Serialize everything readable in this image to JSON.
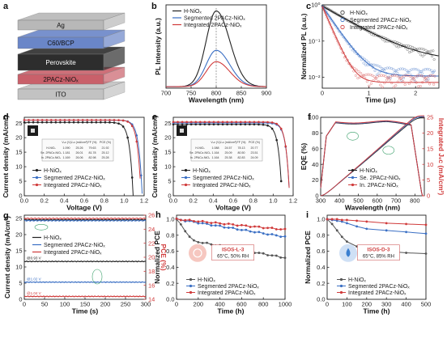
{
  "chart_data": [
    {
      "panel": "a",
      "type": "diagram",
      "layers": [
        {
          "name": "Ag",
          "color": "#b8b8b8"
        },
        {
          "name": "C60/BCP",
          "color": "#6a86c8"
        },
        {
          "name": "Perovskite",
          "color": "#2d2d2d"
        },
        {
          "name": "2PACz-NiOx",
          "color": "#c9606a"
        },
        {
          "name": "ITO",
          "color": "#c2c2c2"
        }
      ]
    },
    {
      "panel": "b",
      "type": "line",
      "xlabel": "Wavelength (nm)",
      "ylabel": "PL Intensity (a.u.)",
      "xlim": [
        700,
        900
      ],
      "xticks": [
        700,
        750,
        800,
        850,
        900
      ],
      "peak": 800,
      "series": [
        {
          "name": "H-NiOx",
          "color": "#222222",
          "amplitude": 1.0
        },
        {
          "name": "Segmented 2PACz-NiOx",
          "color": "#3a6fc4",
          "amplitude": 0.48
        },
        {
          "name": "Integrated 2PACz-NiOx",
          "color": "#d03a3a",
          "amplitude": 0.33
        }
      ]
    },
    {
      "panel": "c",
      "type": "scatter",
      "xlabel": "Time (μs)",
      "ylabel": "Normalized PL (a.u.)",
      "xlim": [
        0,
        2.5
      ],
      "ylog": true,
      "ylim": [
        0.005,
        1
      ],
      "xticks": [
        0,
        1,
        2
      ],
      "yticks": [
        "10^0",
        "10^-1",
        "10^-2"
      ],
      "series": [
        {
          "name": "H-NiOx",
          "color": "#333333",
          "tau": 0.55,
          "floor": 0.03
        },
        {
          "name": "Segmented 2PACz-NiOx",
          "color": "#3a6fc4",
          "tau": 0.22,
          "floor": 0.012
        },
        {
          "name": "Integrated 2PACz-NiOx",
          "color": "#d03a3a",
          "tau": 0.14,
          "floor": 0.008
        }
      ]
    },
    {
      "panel": "d",
      "type": "line",
      "xlabel": "Voltage (V)",
      "ylabel": "Current density (mA/cm²)",
      "xlim": [
        0,
        1.2
      ],
      "ylim": [
        0,
        27
      ],
      "xticks": [
        0,
        0.2,
        0.4,
        0.6,
        0.8,
        1.0,
        1.2
      ],
      "yticks": [
        0,
        5,
        10,
        15,
        20,
        25
      ],
      "series": [
        {
          "name": "H-NiOx",
          "color": "#222222",
          "voc": 1.09,
          "jsc": 25.26
        },
        {
          "name": "Segmented 2PACz-NiOx",
          "color": "#3a6fc4",
          "voc": 1.181,
          "jsc": 26.01
        },
        {
          "name": "Integrated 2PACz-NiOx",
          "color": "#d03a3a",
          "voc": 1.169,
          "jsc": 26.06
        }
      ],
      "table": {
        "headers": [
          "",
          "V_oc (V)",
          "J_sc (mA/cm²)",
          "FF (%)",
          "PCE (%)"
        ],
        "rows": [
          [
            "H-NiOx",
            "1.090",
            "25.26",
            "79.63",
            "21.92"
          ],
          [
            "Se. 2PACz-NiOx",
            "1.181",
            "26.01",
            "81.78",
            "25.12"
          ],
          [
            "In. 2PACz-NiOx",
            "1.169",
            "26.06",
            "82.98",
            "25.28"
          ]
        ]
      }
    },
    {
      "panel": "e",
      "type": "line",
      "xlabel": "Voltage (V)",
      "ylabel": "Current density (mA/cm²)",
      "xlim": [
        0,
        1.2
      ],
      "ylim": [
        0,
        27
      ],
      "xticks": [
        0,
        0.2,
        0.4,
        0.6,
        0.8,
        1.0,
        1.2
      ],
      "yticks": [
        0,
        5,
        10,
        15,
        20,
        25
      ],
      "series": [
        {
          "name": "H-NiOx",
          "color": "#222222",
          "voc": 1.088,
          "jsc": 24.57
        },
        {
          "name": "Segmented 2PACz-NiOx",
          "color": "#3a6fc4",
          "voc": 1.164,
          "jsc": 25.09
        },
        {
          "name": "Integrated 2PACz-NiOx",
          "color": "#d03a3a",
          "voc": 1.164,
          "jsc": 25.38
        }
      ],
      "table": {
        "headers": [
          "",
          "V_oc (V)",
          "J_sc (mA/cm²)",
          "FF (%)",
          "PCE (%)"
        ],
        "rows": [
          [
            "H-NiOx",
            "1.088",
            "24.57",
            "78.13",
            "20.77"
          ],
          [
            "Se. 2PACz-NiOx",
            "1.164",
            "25.09",
            "80.50",
            "23.51"
          ],
          [
            "In. 2PACz-NiOx",
            "1.164",
            "25.38",
            "82.83",
            "24.09"
          ]
        ]
      }
    },
    {
      "panel": "f",
      "type": "line",
      "xlabel": "Wavelength (nm)",
      "ylabel": "EQE (%)",
      "y2label": "Integrated J_sc (mA/cm²)",
      "xlim": [
        300,
        850
      ],
      "ylim": [
        0,
        100
      ],
      "y2lim": [
        0,
        25
      ],
      "xticks": [
        300,
        400,
        500,
        600,
        700,
        800
      ],
      "yticks": [
        0,
        20,
        40,
        60,
        80,
        100
      ],
      "y2ticks": [
        0,
        5,
        10,
        15,
        20,
        25
      ],
      "series": [
        {
          "name": "H-NiOx",
          "color": "#222222"
        },
        {
          "name": "Se. 2PACz-NiOx",
          "color": "#3a6fc4"
        },
        {
          "name": "In. 2PACz-NiOx",
          "color": "#d03a3a"
        }
      ]
    },
    {
      "panel": "g",
      "type": "line",
      "xlabel": "Time (s)",
      "ylabel": "Current density (mA/cm²)",
      "y2label": "PCE (%)",
      "xlim": [
        0,
        300
      ],
      "ylim": [
        0,
        26
      ],
      "xticks": [
        0,
        50,
        100,
        150,
        200,
        250,
        300
      ],
      "yticks": [
        0,
        5,
        10,
        15,
        20,
        25
      ],
      "y2ticks": [
        14,
        16,
        18,
        20,
        22,
        24,
        26
      ],
      "series": [
        {
          "name": "H-NiOx",
          "color": "#222222",
          "j": 24.6,
          "pce_level": 11.7,
          "bias": "@0.93 V"
        },
        {
          "name": "Segmented 2PACz-NiOx",
          "color": "#3a6fc4",
          "j": 24.3,
          "pce_level": 5.3,
          "bias": "@1.02 V"
        },
        {
          "name": "Integrated 2PACz-NiOx",
          "color": "#d03a3a",
          "j": 25.0,
          "pce_level": 0.9,
          "bias": "@1.04 V"
        }
      ]
    },
    {
      "panel": "h",
      "type": "line",
      "xlabel": "Time (h)",
      "ylabel": "Normalized PCE",
      "xlim": [
        0,
        1000
      ],
      "ylim": [
        0,
        1.05
      ],
      "xticks": [
        0,
        200,
        400,
        600,
        800,
        1000
      ],
      "yticks": [
        0.0,
        0.2,
        0.4,
        0.6,
        0.8,
        1.0
      ],
      "annotation": [
        "ISOS-L-3",
        "65°C, 50% RH"
      ],
      "series": [
        {
          "name": "H-NiOx",
          "color": "#555555",
          "end": 0.52
        },
        {
          "name": "Segmented 2PACz-NiOx",
          "color": "#3a6fc4",
          "end": 0.79
        },
        {
          "name": "Integrated 2PACz-NiOx",
          "color": "#d03a3a",
          "end": 0.87
        }
      ]
    },
    {
      "panel": "i",
      "type": "line",
      "xlabel": "Time (h)",
      "ylabel": "Normalized PCE",
      "xlim": [
        0,
        500
      ],
      "ylim": [
        0,
        1.05
      ],
      "xticks": [
        0,
        100,
        200,
        300,
        400,
        500
      ],
      "yticks": [
        0.0,
        0.2,
        0.4,
        0.6,
        0.8,
        1.0
      ],
      "annotation": [
        "ISOS-D-3",
        "65°C, 85% RH"
      ],
      "series": [
        {
          "name": "H-NiOx",
          "color": "#555555",
          "x": [
            0,
            25,
            50,
            75,
            100,
            150,
            200,
            300,
            400,
            500
          ],
          "y": [
            1,
            0.94,
            0.86,
            0.78,
            0.72,
            0.66,
            0.62,
            0.6,
            0.58,
            0.57
          ]
        },
        {
          "name": "Segmented 2PACz-NiOx",
          "color": "#3a6fc4",
          "x": [
            0,
            25,
            50,
            75,
            100,
            150,
            200,
            300,
            400,
            500
          ],
          "y": [
            1,
            0.99,
            0.98,
            0.97,
            0.95,
            0.91,
            0.88,
            0.86,
            0.84,
            0.82
          ]
        },
        {
          "name": "Integrated 2PACz-NiOx",
          "color": "#d03a3a",
          "x": [
            0,
            25,
            50,
            75,
            100,
            150,
            200,
            300,
            400,
            500
          ],
          "y": [
            1,
            1.0,
            1.0,
            0.99,
            0.99,
            0.98,
            0.97,
            0.95,
            0.94,
            0.93
          ]
        }
      ]
    }
  ]
}
